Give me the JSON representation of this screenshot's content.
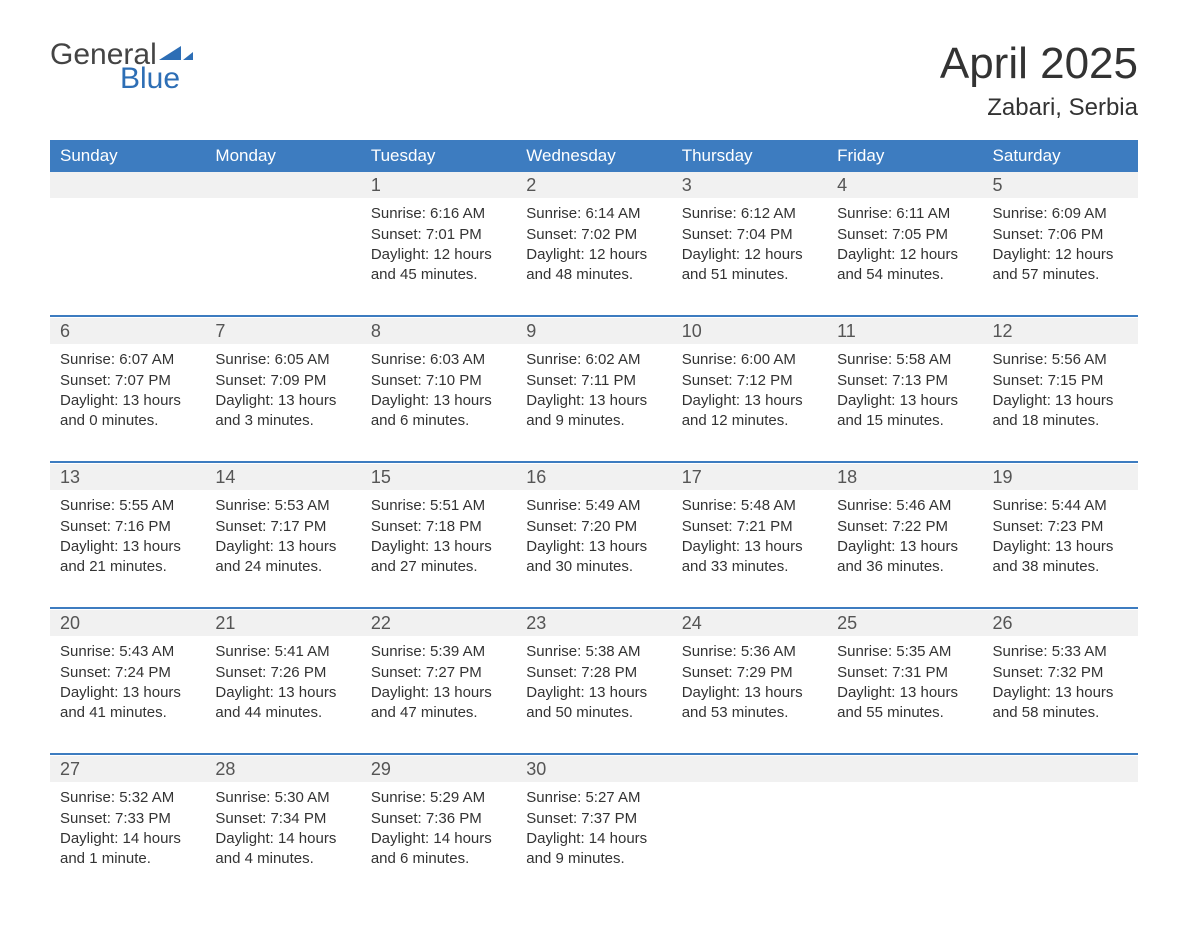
{
  "logo": {
    "word1": "General",
    "word2": "Blue",
    "icon_color": "#2d6eb5"
  },
  "title": "April 2025",
  "location": "Zabari, Serbia",
  "colors": {
    "header_bg": "#3d7cc0",
    "header_text": "#ffffff",
    "daynum_bg": "#f1f1f1",
    "body_text": "#333333",
    "rule": "#3d7cc0"
  },
  "day_headers": [
    "Sunday",
    "Monday",
    "Tuesday",
    "Wednesday",
    "Thursday",
    "Friday",
    "Saturday"
  ],
  "weeks": [
    [
      null,
      null,
      {
        "n": "1",
        "sr": "Sunrise: 6:16 AM",
        "ss": "Sunset: 7:01 PM",
        "d1": "Daylight: 12 hours",
        "d2": "and 45 minutes."
      },
      {
        "n": "2",
        "sr": "Sunrise: 6:14 AM",
        "ss": "Sunset: 7:02 PM",
        "d1": "Daylight: 12 hours",
        "d2": "and 48 minutes."
      },
      {
        "n": "3",
        "sr": "Sunrise: 6:12 AM",
        "ss": "Sunset: 7:04 PM",
        "d1": "Daylight: 12 hours",
        "d2": "and 51 minutes."
      },
      {
        "n": "4",
        "sr": "Sunrise: 6:11 AM",
        "ss": "Sunset: 7:05 PM",
        "d1": "Daylight: 12 hours",
        "d2": "and 54 minutes."
      },
      {
        "n": "5",
        "sr": "Sunrise: 6:09 AM",
        "ss": "Sunset: 7:06 PM",
        "d1": "Daylight: 12 hours",
        "d2": "and 57 minutes."
      }
    ],
    [
      {
        "n": "6",
        "sr": "Sunrise: 6:07 AM",
        "ss": "Sunset: 7:07 PM",
        "d1": "Daylight: 13 hours",
        "d2": "and 0 minutes."
      },
      {
        "n": "7",
        "sr": "Sunrise: 6:05 AM",
        "ss": "Sunset: 7:09 PM",
        "d1": "Daylight: 13 hours",
        "d2": "and 3 minutes."
      },
      {
        "n": "8",
        "sr": "Sunrise: 6:03 AM",
        "ss": "Sunset: 7:10 PM",
        "d1": "Daylight: 13 hours",
        "d2": "and 6 minutes."
      },
      {
        "n": "9",
        "sr": "Sunrise: 6:02 AM",
        "ss": "Sunset: 7:11 PM",
        "d1": "Daylight: 13 hours",
        "d2": "and 9 minutes."
      },
      {
        "n": "10",
        "sr": "Sunrise: 6:00 AM",
        "ss": "Sunset: 7:12 PM",
        "d1": "Daylight: 13 hours",
        "d2": "and 12 minutes."
      },
      {
        "n": "11",
        "sr": "Sunrise: 5:58 AM",
        "ss": "Sunset: 7:13 PM",
        "d1": "Daylight: 13 hours",
        "d2": "and 15 minutes."
      },
      {
        "n": "12",
        "sr": "Sunrise: 5:56 AM",
        "ss": "Sunset: 7:15 PM",
        "d1": "Daylight: 13 hours",
        "d2": "and 18 minutes."
      }
    ],
    [
      {
        "n": "13",
        "sr": "Sunrise: 5:55 AM",
        "ss": "Sunset: 7:16 PM",
        "d1": "Daylight: 13 hours",
        "d2": "and 21 minutes."
      },
      {
        "n": "14",
        "sr": "Sunrise: 5:53 AM",
        "ss": "Sunset: 7:17 PM",
        "d1": "Daylight: 13 hours",
        "d2": "and 24 minutes."
      },
      {
        "n": "15",
        "sr": "Sunrise: 5:51 AM",
        "ss": "Sunset: 7:18 PM",
        "d1": "Daylight: 13 hours",
        "d2": "and 27 minutes."
      },
      {
        "n": "16",
        "sr": "Sunrise: 5:49 AM",
        "ss": "Sunset: 7:20 PM",
        "d1": "Daylight: 13 hours",
        "d2": "and 30 minutes."
      },
      {
        "n": "17",
        "sr": "Sunrise: 5:48 AM",
        "ss": "Sunset: 7:21 PM",
        "d1": "Daylight: 13 hours",
        "d2": "and 33 minutes."
      },
      {
        "n": "18",
        "sr": "Sunrise: 5:46 AM",
        "ss": "Sunset: 7:22 PM",
        "d1": "Daylight: 13 hours",
        "d2": "and 36 minutes."
      },
      {
        "n": "19",
        "sr": "Sunrise: 5:44 AM",
        "ss": "Sunset: 7:23 PM",
        "d1": "Daylight: 13 hours",
        "d2": "and 38 minutes."
      }
    ],
    [
      {
        "n": "20",
        "sr": "Sunrise: 5:43 AM",
        "ss": "Sunset: 7:24 PM",
        "d1": "Daylight: 13 hours",
        "d2": "and 41 minutes."
      },
      {
        "n": "21",
        "sr": "Sunrise: 5:41 AM",
        "ss": "Sunset: 7:26 PM",
        "d1": "Daylight: 13 hours",
        "d2": "and 44 minutes."
      },
      {
        "n": "22",
        "sr": "Sunrise: 5:39 AM",
        "ss": "Sunset: 7:27 PM",
        "d1": "Daylight: 13 hours",
        "d2": "and 47 minutes."
      },
      {
        "n": "23",
        "sr": "Sunrise: 5:38 AM",
        "ss": "Sunset: 7:28 PM",
        "d1": "Daylight: 13 hours",
        "d2": "and 50 minutes."
      },
      {
        "n": "24",
        "sr": "Sunrise: 5:36 AM",
        "ss": "Sunset: 7:29 PM",
        "d1": "Daylight: 13 hours",
        "d2": "and 53 minutes."
      },
      {
        "n": "25",
        "sr": "Sunrise: 5:35 AM",
        "ss": "Sunset: 7:31 PM",
        "d1": "Daylight: 13 hours",
        "d2": "and 55 minutes."
      },
      {
        "n": "26",
        "sr": "Sunrise: 5:33 AM",
        "ss": "Sunset: 7:32 PM",
        "d1": "Daylight: 13 hours",
        "d2": "and 58 minutes."
      }
    ],
    [
      {
        "n": "27",
        "sr": "Sunrise: 5:32 AM",
        "ss": "Sunset: 7:33 PM",
        "d1": "Daylight: 14 hours",
        "d2": "and 1 minute."
      },
      {
        "n": "28",
        "sr": "Sunrise: 5:30 AM",
        "ss": "Sunset: 7:34 PM",
        "d1": "Daylight: 14 hours",
        "d2": "and 4 minutes."
      },
      {
        "n": "29",
        "sr": "Sunrise: 5:29 AM",
        "ss": "Sunset: 7:36 PM",
        "d1": "Daylight: 14 hours",
        "d2": "and 6 minutes."
      },
      {
        "n": "30",
        "sr": "Sunrise: 5:27 AM",
        "ss": "Sunset: 7:37 PM",
        "d1": "Daylight: 14 hours",
        "d2": "and 9 minutes."
      },
      null,
      null,
      null
    ]
  ]
}
